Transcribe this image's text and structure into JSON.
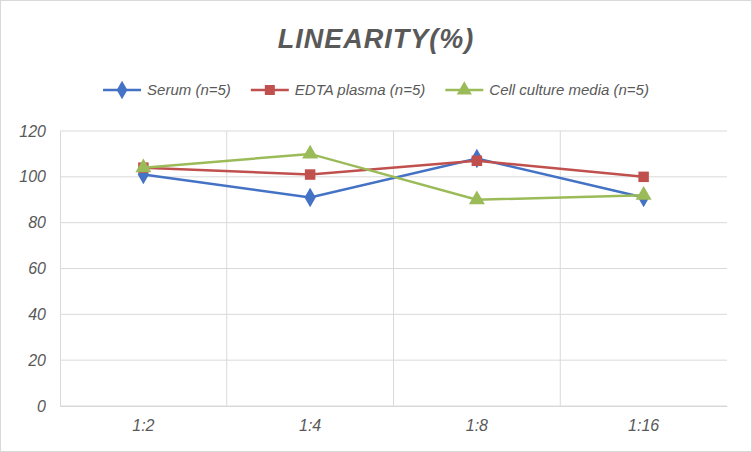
{
  "chart_data": {
    "type": "line",
    "title": "LINEARITY(%)",
    "categories": [
      "1:2",
      "1:4",
      "1:8",
      "1:16"
    ],
    "series": [
      {
        "name": "Serum (n=5)",
        "color": "#4472c4",
        "marker": "diamond",
        "line_style": "solid",
        "values": [
          101,
          91,
          108,
          91
        ]
      },
      {
        "name": "EDTA plasma (n=5)",
        "color": "#c0504d",
        "marker": "square",
        "line_style": "solid",
        "values": [
          104,
          101,
          107,
          100
        ]
      },
      {
        "name": "Cell culture media (n=5)",
        "color": "#9bbb59",
        "marker": "triangle",
        "line_style": "solid",
        "values": [
          104,
          110,
          90,
          92
        ]
      }
    ],
    "ylim": [
      0,
      120
    ],
    "yticks": [
      0,
      20,
      40,
      60,
      80,
      100,
      120
    ],
    "grid": true,
    "legend": "top"
  }
}
